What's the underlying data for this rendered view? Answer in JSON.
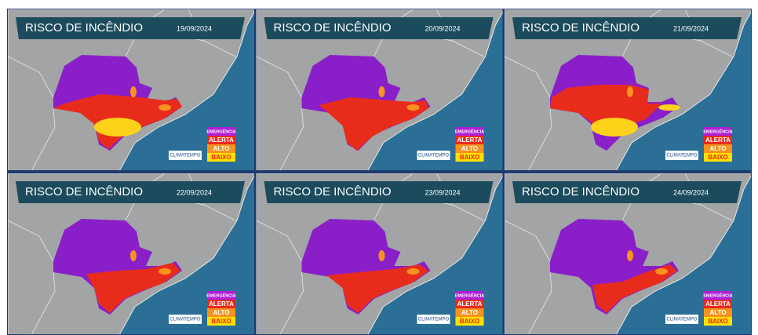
{
  "panels": [
    {
      "title": "RISCO DE INCÊNDIO",
      "date": "19/09/2024",
      "legend": [
        "EMERGÊNCIA",
        "ALERTA",
        "ALTO",
        "BAIXO"
      ],
      "logo": "CLIMATEMPO"
    },
    {
      "title": "RISCO DE INCÊNDIO",
      "date": "20/09/2024",
      "legend": [
        "EMERGÊNCIA",
        "ALERTA",
        "ALTO",
        "BAIXO"
      ],
      "logo": "CLIMATEMPO"
    },
    {
      "title": "RISCO DE INCÊNDIO",
      "date": "21/09/2024",
      "legend": [
        "EMERGÊNCIA",
        "ALERTA",
        "ALTO",
        "BAIXO"
      ],
      "logo": "CLIMATEMPO"
    },
    {
      "title": "RISCO DE INCÊNDIO",
      "date": "22/09/2024",
      "legend": [
        "EMERGÊNCIA",
        "ALERTA",
        "ALTO",
        "BAIXO"
      ],
      "logo": "CLIMATEMPO"
    },
    {
      "title": "RISCO DE INCÊNDIO",
      "date": "23/09/2024",
      "legend": [
        "EMERGÊNCIA",
        "ALERTA",
        "ALTO",
        "BAIXO"
      ],
      "logo": "CLIMATEMPO"
    },
    {
      "title": "RISCO DE INCÊNDIO",
      "date": "24/09/2024",
      "legend": [
        "EMERGÊNCIA",
        "ALERTA",
        "ALTO",
        "BAIXO"
      ],
      "logo": "CLIMATEMPO"
    }
  ]
}
